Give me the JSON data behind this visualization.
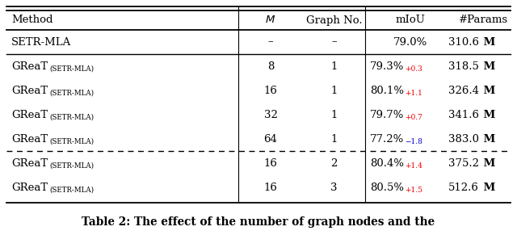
{
  "title": "Table 2: The effect of the number of graph nodes and the",
  "col_headers": [
    "Method",
    "M",
    "Graph No.",
    "mIoU",
    "#Params"
  ],
  "rows": [
    {
      "method": "SETR-MLA",
      "is_great": false,
      "M": "–",
      "graphno": "–",
      "miou_base": "79.0%",
      "delta": "",
      "delta_color": "red",
      "params": "310.6"
    },
    {
      "method": "GReaT",
      "is_great": true,
      "M": "8",
      "graphno": "1",
      "miou_base": "79.3%",
      "delta": "+0.3",
      "delta_color": "#ee0000",
      "params": "318.5"
    },
    {
      "method": "GReaT",
      "is_great": true,
      "M": "16",
      "graphno": "1",
      "miou_base": "80.1%",
      "delta": "+1.1",
      "delta_color": "#ee0000",
      "params": "326.4"
    },
    {
      "method": "GReaT",
      "is_great": true,
      "M": "32",
      "graphno": "1",
      "miou_base": "79.7%",
      "delta": "+0.7",
      "delta_color": "#ee0000",
      "params": "341.6"
    },
    {
      "method": "GReaT",
      "is_great": true,
      "M": "64",
      "graphno": "1",
      "miou_base": "77.2%",
      "delta": "−1.8",
      "delta_color": "#0000cc",
      "params": "383.0"
    },
    {
      "method": "GReaT",
      "is_great": true,
      "M": "16",
      "graphno": "2",
      "miou_base": "80.4%",
      "delta": "+1.4",
      "delta_color": "#ee0000",
      "params": "375.2"
    },
    {
      "method": "GReaT",
      "is_great": true,
      "M": "16",
      "graphno": "3",
      "miou_base": "80.5%",
      "delta": "+1.5",
      "delta_color": "#ee0000",
      "params": "512.6"
    }
  ],
  "solid_sep_after": [
    0
  ],
  "dashed_sep_after": [
    4
  ],
  "bg_color": "#ffffff"
}
